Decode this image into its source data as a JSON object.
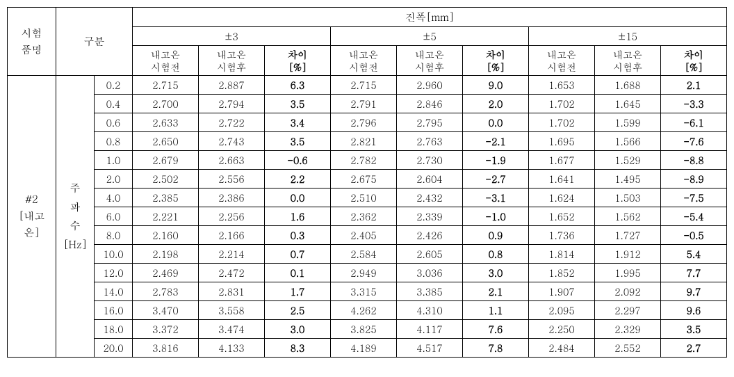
{
  "headers": {
    "col_name": "시험\n품명",
    "col_gubun": "구분",
    "amplitude_title": "진폭[mm]",
    "amp_levels": [
      "±3",
      "±5",
      "±15"
    ],
    "sub_before": "내고온\n시험전",
    "sub_after": "내고온\n시험후",
    "sub_diff": "차이\n[%]"
  },
  "row_label": "#2\n[내고\n온]",
  "freq_label": "주\n파\n수\n[Hz]",
  "rows": [
    {
      "f": "0.2",
      "a": [
        "2.715",
        "2.887",
        "6.3"
      ],
      "b": [
        "2.715",
        "2.960",
        "9.0"
      ],
      "c": [
        "1.653",
        "1.688",
        "2.1"
      ]
    },
    {
      "f": "0.4",
      "a": [
        "2.700",
        "2.794",
        "3.5"
      ],
      "b": [
        "2.791",
        "2.846",
        "2.0"
      ],
      "c": [
        "1.702",
        "1.645",
        "-3.3"
      ]
    },
    {
      "f": "0.6",
      "a": [
        "2.633",
        "2.722",
        "3.4"
      ],
      "b": [
        "2.796",
        "2.795",
        "0.0"
      ],
      "c": [
        "1.702",
        "1.599",
        "-6.1"
      ]
    },
    {
      "f": "0.8",
      "a": [
        "2.650",
        "2.743",
        "3.5"
      ],
      "b": [
        "2.821",
        "2.763",
        "-2.1"
      ],
      "c": [
        "1.695",
        "1.566",
        "-7.6"
      ]
    },
    {
      "f": "1.0",
      "a": [
        "2.679",
        "2.663",
        "-0.6"
      ],
      "b": [
        "2.782",
        "2.730",
        "-1.9"
      ],
      "c": [
        "1.677",
        "1.529",
        "-8.8"
      ]
    },
    {
      "f": "2.0",
      "a": [
        "2.502",
        "2.556",
        "2.2"
      ],
      "b": [
        "2.675",
        "2.604",
        "-2.7"
      ],
      "c": [
        "1.641",
        "1.495",
        "-8.9"
      ]
    },
    {
      "f": "4.0",
      "a": [
        "2.385",
        "2.386",
        "0.0"
      ],
      "b": [
        "2.510",
        "2.432",
        "-3.1"
      ],
      "c": [
        "1.624",
        "1.503",
        "-7.5"
      ]
    },
    {
      "f": "6.0",
      "a": [
        "2.221",
        "2.256",
        "1.6"
      ],
      "b": [
        "2.362",
        "2.339",
        "-1.0"
      ],
      "c": [
        "1.652",
        "1.562",
        "-5.4"
      ]
    },
    {
      "f": "8.0",
      "a": [
        "2.160",
        "2.166",
        "0.3"
      ],
      "b": [
        "2.405",
        "2.426",
        "0.9"
      ],
      "c": [
        "1.736",
        "1.727",
        "-0.5"
      ]
    },
    {
      "f": "10.0",
      "a": [
        "2.198",
        "2.214",
        "0.7"
      ],
      "b": [
        "2.584",
        "2.605",
        "0.8"
      ],
      "c": [
        "1.814",
        "1.912",
        "5.4"
      ]
    },
    {
      "f": "12.0",
      "a": [
        "2.469",
        "2.472",
        "0.1"
      ],
      "b": [
        "2.949",
        "3.036",
        "3.0"
      ],
      "c": [
        "1.852",
        "1.995",
        "7.7"
      ]
    },
    {
      "f": "14.0",
      "a": [
        "2.783",
        "2.831",
        "1.7"
      ],
      "b": [
        "3.315",
        "3.385",
        "2.1"
      ],
      "c": [
        "1.907",
        "2.092",
        "9.7"
      ]
    },
    {
      "f": "16.0",
      "a": [
        "3.470",
        "3.558",
        "2.5"
      ],
      "b": [
        "4.262",
        "4.310",
        "1.1"
      ],
      "c": [
        "2.095",
        "2.297",
        "9.6"
      ]
    },
    {
      "f": "18.0",
      "a": [
        "3.372",
        "3.474",
        "3.0"
      ],
      "b": [
        "3.825",
        "4.117",
        "7.6"
      ],
      "c": [
        "2.250",
        "2.329",
        "3.5"
      ]
    },
    {
      "f": "20.0",
      "a": [
        "3.816",
        "4.133",
        "8.3"
      ],
      "b": [
        "4.189",
        "4.517",
        "7.8"
      ],
      "c": [
        "2.484",
        "2.552",
        "2.7"
      ]
    }
  ]
}
